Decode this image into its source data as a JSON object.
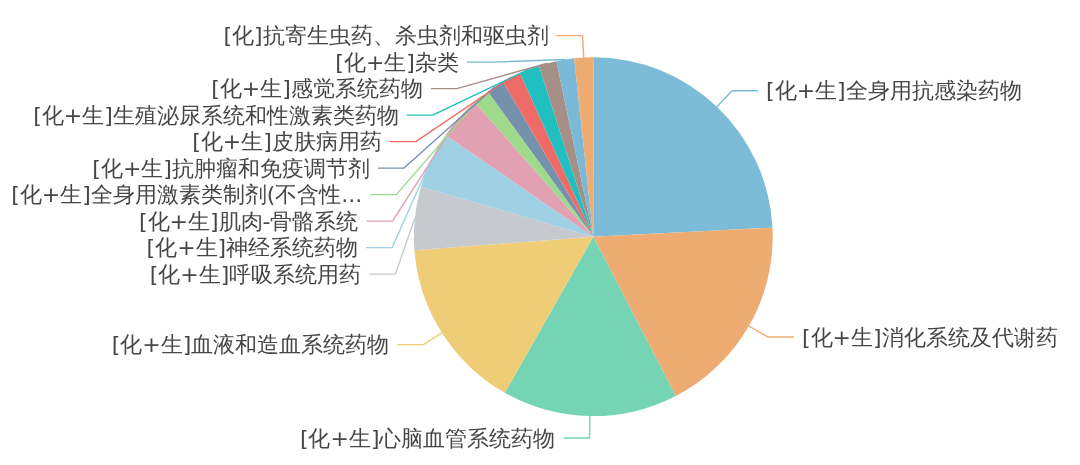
{
  "chart_data": {
    "type": "pie",
    "categories": [
      "[化+生]全身用抗感染药物",
      "[化+生]消化系统及代谢药",
      "[化+生]心脑血管系统药物",
      "[化+生]血液和造血系统药物",
      "[化+生]呼吸系统用药",
      "[化+生]神经系统药物",
      "[化+生]肌肉-骨骼系统",
      "[化+生]全身用激素类制剂(不含性...",
      "[化+生]抗肿瘤和免疫调节剂",
      "[化+生]皮肤病用药",
      "[化+生]生殖泌尿系统和性激素类药物",
      "[化+生]感觉系统药物",
      "[化+生]杂类",
      "[化]抗寄生虫药、杀虫剂和驱虫剂"
    ],
    "values": [
      24.2,
      18.2,
      15.8,
      15.6,
      5.7,
      5.1,
      3.9,
      1.5,
      1.6,
      1.7,
      1.8,
      1.6,
      1.6,
      1.7
    ],
    "colors": [
      "#7dbcd9",
      "#eeac73",
      "#74d4b4",
      "#eecd76",
      "#c6c9cd",
      "#9fd0e3",
      "#e1a1b2",
      "#9fd98b",
      "#7591ab",
      "#ee6b68",
      "#20c0c0",
      "#a68f86",
      "#7ab9d8",
      "#eeab72"
    ]
  }
}
